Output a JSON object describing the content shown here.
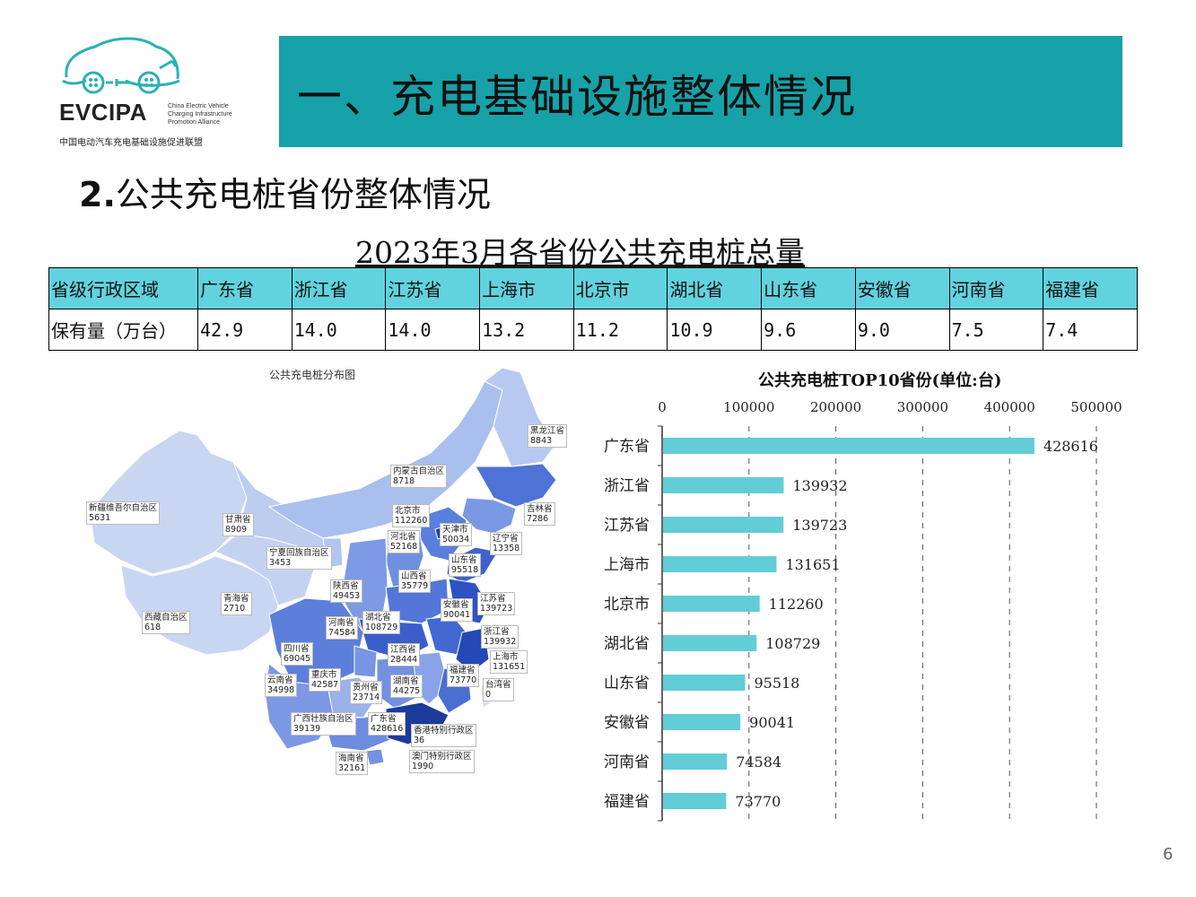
{
  "logo": {
    "brand": "EVCIPA",
    "subtitle": [
      "China Electric Vehicle",
      "Charging Infrastructure",
      "Promotion Alliance"
    ],
    "name_cn": "中国电动汽车充电基础设施促进联盟"
  },
  "header": {
    "title": "一、充电基础设施整体情况",
    "bg_color": "#16a2a8"
  },
  "section": {
    "number": "2.",
    "title": "公共充电桩省份整体情况"
  },
  "table": {
    "title": "2023年3月各省份公共充电桩总量",
    "row_headers": [
      "省级行政区域",
      "保有量（万台）"
    ],
    "provinces": [
      "广东省",
      "浙江省",
      "江苏省",
      "上海市",
      "北京市",
      "湖北省",
      "山东省",
      "安徽省",
      "河南省",
      "福建省"
    ],
    "values": [
      "42.9",
      "14.0",
      "14.0",
      "13.2",
      "11.2",
      "10.9",
      "9.6",
      "9.0",
      "7.5",
      "7.4"
    ],
    "header_color": "#61d3de"
  },
  "map": {
    "title": "公共充电桩分布图",
    "labels": [
      {
        "name": "黑龙江省",
        "value": "8843"
      },
      {
        "name": "内蒙古自治区",
        "value": "8718"
      },
      {
        "name": "吉林省",
        "value": "7286"
      },
      {
        "name": "新疆维吾尔自治区",
        "value": "5631"
      },
      {
        "name": "甘肃省",
        "value": "8909"
      },
      {
        "name": "北京市",
        "value": "112260"
      },
      {
        "name": "天津市",
        "value": "50034"
      },
      {
        "name": "辽宁省",
        "value": "13358"
      },
      {
        "name": "河北省",
        "value": "52168"
      },
      {
        "name": "宁夏回族自治区",
        "value": "3453"
      },
      {
        "name": "山东省",
        "value": "95518"
      },
      {
        "name": "山西省",
        "value": "35779"
      },
      {
        "name": "陕西省",
        "value": "49453"
      },
      {
        "name": "青海省",
        "value": "2710"
      },
      {
        "name": "江苏省",
        "value": "139723"
      },
      {
        "name": "安徽省",
        "value": "90041"
      },
      {
        "name": "西藏自治区",
        "value": "618"
      },
      {
        "name": "河南省",
        "value": "74584"
      },
      {
        "name": "湖北省",
        "value": "108729"
      },
      {
        "name": "浙江省",
        "value": "139932"
      },
      {
        "name": "四川省",
        "value": "69045"
      },
      {
        "name": "江西省",
        "value": "28444"
      },
      {
        "name": "上海市",
        "value": "131651"
      },
      {
        "name": "福建省",
        "value": "73770"
      },
      {
        "name": "云南省",
        "value": "34998"
      },
      {
        "name": "重庆市",
        "value": "42587"
      },
      {
        "name": "贵州省",
        "value": "23714"
      },
      {
        "name": "湖南省",
        "value": "44275"
      },
      {
        "name": "台湾省",
        "value": "0"
      },
      {
        "name": "广西壮族自治区",
        "value": "39139"
      },
      {
        "name": "广东省",
        "value": "428616"
      },
      {
        "name": "香港特别行政区",
        "value": "36"
      },
      {
        "name": "海南省",
        "value": "32161"
      },
      {
        "name": "澳门特别行政区",
        "value": "1990"
      }
    ]
  },
  "chart_data": {
    "type": "bar",
    "orientation": "horizontal",
    "title": "公共充电桩TOP10省份(单位:台)",
    "categories": [
      "广东省",
      "浙江省",
      "江苏省",
      "上海市",
      "北京市",
      "湖北省",
      "山东省",
      "安徽省",
      "河南省",
      "福建省"
    ],
    "values": [
      428616,
      139932,
      139723,
      131651,
      112260,
      108729,
      95518,
      90041,
      74584,
      73770
    ],
    "xlim": [
      0,
      500000
    ],
    "xticks": [
      "0",
      "100000",
      "200000",
      "300000",
      "400000",
      "500000"
    ],
    "xlabel": "",
    "ylabel": "",
    "grid": "vertical dashed",
    "bar_color": "#62cdd6"
  },
  "page_number": "6"
}
